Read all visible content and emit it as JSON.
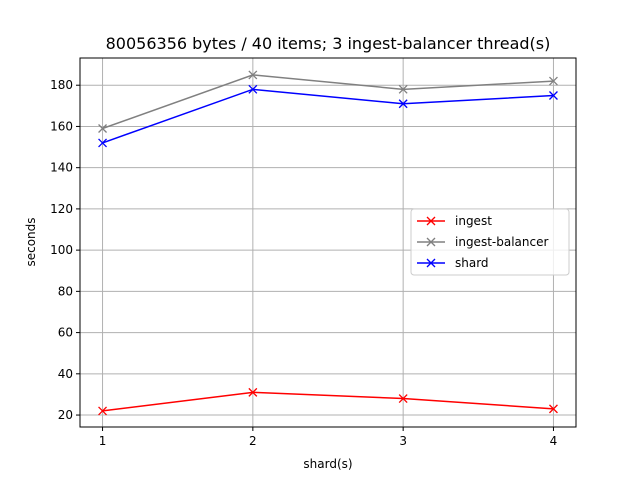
{
  "chart_data": {
    "type": "line",
    "title": "80056356 bytes / 40 items; 3 ingest-balancer thread(s)",
    "xlabel": "shard(s)",
    "ylabel": "seconds",
    "x": [
      1,
      2,
      3,
      4
    ],
    "xticks": [
      1,
      2,
      3,
      4
    ],
    "xlim": [
      0.85,
      4.15
    ],
    "yticks": [
      20,
      40,
      60,
      80,
      100,
      120,
      140,
      160,
      180
    ],
    "ylim": [
      14.2,
      193.2
    ],
    "grid": true,
    "legend_position": "center-right",
    "marker": "x",
    "series": [
      {
        "name": "ingest",
        "color": "#ff0000",
        "values": [
          22,
          31,
          28,
          23
        ]
      },
      {
        "name": "ingest-balancer",
        "color": "#808080",
        "values": [
          159,
          185,
          178,
          182
        ]
      },
      {
        "name": "shard",
        "color": "#0000ff",
        "values": [
          152,
          178,
          171,
          175
        ]
      }
    ]
  }
}
